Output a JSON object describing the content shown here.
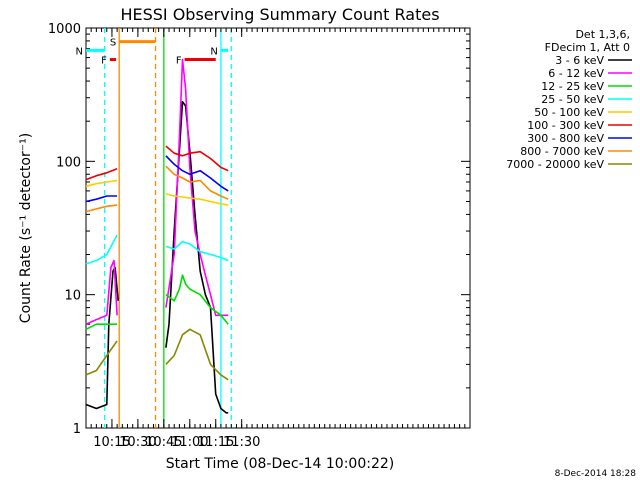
{
  "chart_data": {
    "type": "line",
    "title": "HESSI Observing Summary Count Rates",
    "xlabel": "Start Time (08-Dec-14 10:00:22)",
    "ylabel": "Count Rate (s⁻¹ detector⁻¹)",
    "footer": "8-Dec-2014 18:28",
    "x_axis": {
      "range_minutes": [
        10.0,
        13.7
      ],
      "ticks": [
        {
          "minutes": 10.25,
          "label": "10:15"
        },
        {
          "minutes": 10.5,
          "label": "10:30"
        },
        {
          "minutes": 10.75,
          "label": "10:45"
        },
        {
          "minutes": 11.0,
          "label": "11:00"
        },
        {
          "minutes": 11.25,
          "label": "11:15"
        },
        {
          "minutes": 11.5,
          "label": "11:30"
        }
      ]
    },
    "y_axis": {
      "scale": "log",
      "range": [
        1,
        1000
      ],
      "ticks": [
        {
          "value": 1,
          "label": "1"
        },
        {
          "value": 10,
          "label": "10"
        },
        {
          "value": 100,
          "label": "100"
        },
        {
          "value": 1000,
          "label": "1000"
        }
      ]
    },
    "legend": {
      "header": [
        "Det 1,3,6,",
        "FDecim 1, Att 0"
      ],
      "placement": "right"
    },
    "series": [
      {
        "name": "3 - 6 keV",
        "color": "#000000",
        "points": [
          [
            10.0,
            1.5
          ],
          [
            10.1,
            1.4
          ],
          [
            10.2,
            1.5
          ],
          [
            10.22,
            6
          ],
          [
            10.26,
            15
          ],
          [
            10.28,
            16
          ],
          [
            10.31,
            9
          ],
          [
            10.75,
            null
          ],
          [
            10.77,
            4
          ],
          [
            10.8,
            6
          ],
          [
            10.85,
            30
          ],
          [
            10.9,
            120
          ],
          [
            10.93,
            280
          ],
          [
            10.96,
            260
          ],
          [
            11.0,
            120
          ],
          [
            11.05,
            40
          ],
          [
            11.1,
            15
          ],
          [
            11.15,
            10
          ],
          [
            11.2,
            8
          ],
          [
            11.25,
            1.8
          ],
          [
            11.3,
            1.4
          ],
          [
            11.35,
            1.3
          ],
          [
            11.37,
            1.3
          ]
        ]
      },
      {
        "name": "6 - 12 keV",
        "color": "#ff00ff",
        "points": [
          [
            10.0,
            6
          ],
          [
            10.1,
            6.5
          ],
          [
            10.2,
            7
          ],
          [
            10.24,
            16
          ],
          [
            10.27,
            18
          ],
          [
            10.3,
            7
          ],
          [
            10.75,
            null
          ],
          [
            10.77,
            8
          ],
          [
            10.85,
            20
          ],
          [
            10.9,
            150
          ],
          [
            10.93,
            580
          ],
          [
            10.96,
            350
          ],
          [
            11.0,
            90
          ],
          [
            11.05,
            30
          ],
          [
            11.1,
            20
          ],
          [
            11.15,
            14
          ],
          [
            11.2,
            10
          ],
          [
            11.25,
            7
          ],
          [
            11.3,
            7
          ],
          [
            11.37,
            7
          ]
        ]
      },
      {
        "name": "12 - 25 keV",
        "color": "#00dd00",
        "points": [
          [
            10.0,
            5.5
          ],
          [
            10.1,
            6
          ],
          [
            10.2,
            6
          ],
          [
            10.3,
            6
          ],
          [
            10.75,
            null
          ],
          [
            10.77,
            10
          ],
          [
            10.85,
            9
          ],
          [
            10.9,
            11
          ],
          [
            10.93,
            14
          ],
          [
            10.96,
            12
          ],
          [
            11.0,
            11
          ],
          [
            11.1,
            10
          ],
          [
            11.2,
            8
          ],
          [
            11.3,
            7
          ],
          [
            11.37,
            6
          ]
        ]
      },
      {
        "name": "25 - 50 keV",
        "color": "#00ffff",
        "points": [
          [
            10.0,
            17
          ],
          [
            10.1,
            18
          ],
          [
            10.2,
            20
          ],
          [
            10.3,
            28
          ],
          [
            10.75,
            null
          ],
          [
            10.77,
            23
          ],
          [
            10.85,
            22
          ],
          [
            10.93,
            25
          ],
          [
            11.0,
            24
          ],
          [
            11.1,
            21
          ],
          [
            11.2,
            20
          ],
          [
            11.3,
            19
          ],
          [
            11.37,
            18
          ]
        ]
      },
      {
        "name": "50 - 100 keV",
        "color": "#ffcc00",
        "points": [
          [
            10.0,
            65
          ],
          [
            10.1,
            68
          ],
          [
            10.2,
            70
          ],
          [
            10.3,
            72
          ],
          [
            10.75,
            null
          ],
          [
            10.77,
            57
          ],
          [
            10.85,
            55
          ],
          [
            10.93,
            54
          ],
          [
            11.0,
            53
          ],
          [
            11.1,
            52
          ],
          [
            11.2,
            50
          ],
          [
            11.3,
            48
          ],
          [
            11.37,
            47
          ]
        ]
      },
      {
        "name": "100 - 300 keV",
        "color": "#ee0000",
        "points": [
          [
            10.0,
            73
          ],
          [
            10.1,
            78
          ],
          [
            10.2,
            82
          ],
          [
            10.3,
            88
          ],
          [
            10.75,
            null
          ],
          [
            10.77,
            130
          ],
          [
            10.85,
            115
          ],
          [
            10.93,
            110
          ],
          [
            11.0,
            115
          ],
          [
            11.1,
            118
          ],
          [
            11.2,
            105
          ],
          [
            11.3,
            90
          ],
          [
            11.37,
            85
          ]
        ]
      },
      {
        "name": "300 - 800 keV",
        "color": "#0000ff",
        "points": [
          [
            10.0,
            50
          ],
          [
            10.1,
            52
          ],
          [
            10.2,
            55
          ],
          [
            10.3,
            55
          ],
          [
            10.75,
            null
          ],
          [
            10.77,
            110
          ],
          [
            10.85,
            95
          ],
          [
            10.93,
            85
          ],
          [
            11.0,
            80
          ],
          [
            11.1,
            85
          ],
          [
            11.2,
            75
          ],
          [
            11.3,
            65
          ],
          [
            11.37,
            60
          ]
        ]
      },
      {
        "name": "800 - 7000 keV",
        "color": "#ff8800",
        "points": [
          [
            10.0,
            42
          ],
          [
            10.1,
            44
          ],
          [
            10.2,
            46
          ],
          [
            10.3,
            47
          ],
          [
            10.75,
            null
          ],
          [
            10.77,
            92
          ],
          [
            10.85,
            80
          ],
          [
            10.93,
            75
          ],
          [
            11.0,
            70
          ],
          [
            11.1,
            72
          ],
          [
            11.2,
            60
          ],
          [
            11.3,
            55
          ],
          [
            11.37,
            52
          ]
        ]
      },
      {
        "name": "7000 - 20000 keV",
        "color": "#888800",
        "points": [
          [
            10.0,
            2.5
          ],
          [
            10.1,
            2.7
          ],
          [
            10.2,
            3.5
          ],
          [
            10.3,
            4.5
          ],
          [
            10.75,
            null
          ],
          [
            10.77,
            3
          ],
          [
            10.85,
            3.5
          ],
          [
            10.93,
            5
          ],
          [
            11.0,
            5.5
          ],
          [
            11.1,
            5
          ],
          [
            11.2,
            3
          ],
          [
            11.3,
            2.5
          ],
          [
            11.37,
            2.3
          ]
        ]
      }
    ],
    "annotations": [
      {
        "label": "F",
        "color": "#ee0000",
        "start": 10.23,
        "end": 10.29,
        "y": 580
      },
      {
        "label": "N",
        "color": "#00ffff",
        "start": 10.0,
        "end": 10.18,
        "y": 680
      },
      {
        "label": "S",
        "color": "#ff8800",
        "start": 10.32,
        "end": 10.67,
        "y": 790
      },
      {
        "label": "F",
        "color": "#ee0000",
        "start": 10.95,
        "end": 11.25,
        "y": 580
      },
      {
        "label": "N",
        "color": "#00ffff",
        "start": 11.3,
        "end": 11.37,
        "y": 680
      }
    ],
    "vertical_lines": [
      {
        "minutes": 10.18,
        "color": "#00ffff",
        "dashed": true
      },
      {
        "minutes": 10.32,
        "color": "#ff8800",
        "dashed": false
      },
      {
        "minutes": 10.67,
        "color": "#ff8800",
        "dashed": true
      },
      {
        "minutes": 10.75,
        "color": "#00dd00",
        "dashed": false
      },
      {
        "minutes": 11.3,
        "color": "#00ffff",
        "dashed": false
      },
      {
        "minutes": 11.4,
        "color": "#00ffff",
        "dashed": true
      }
    ]
  }
}
